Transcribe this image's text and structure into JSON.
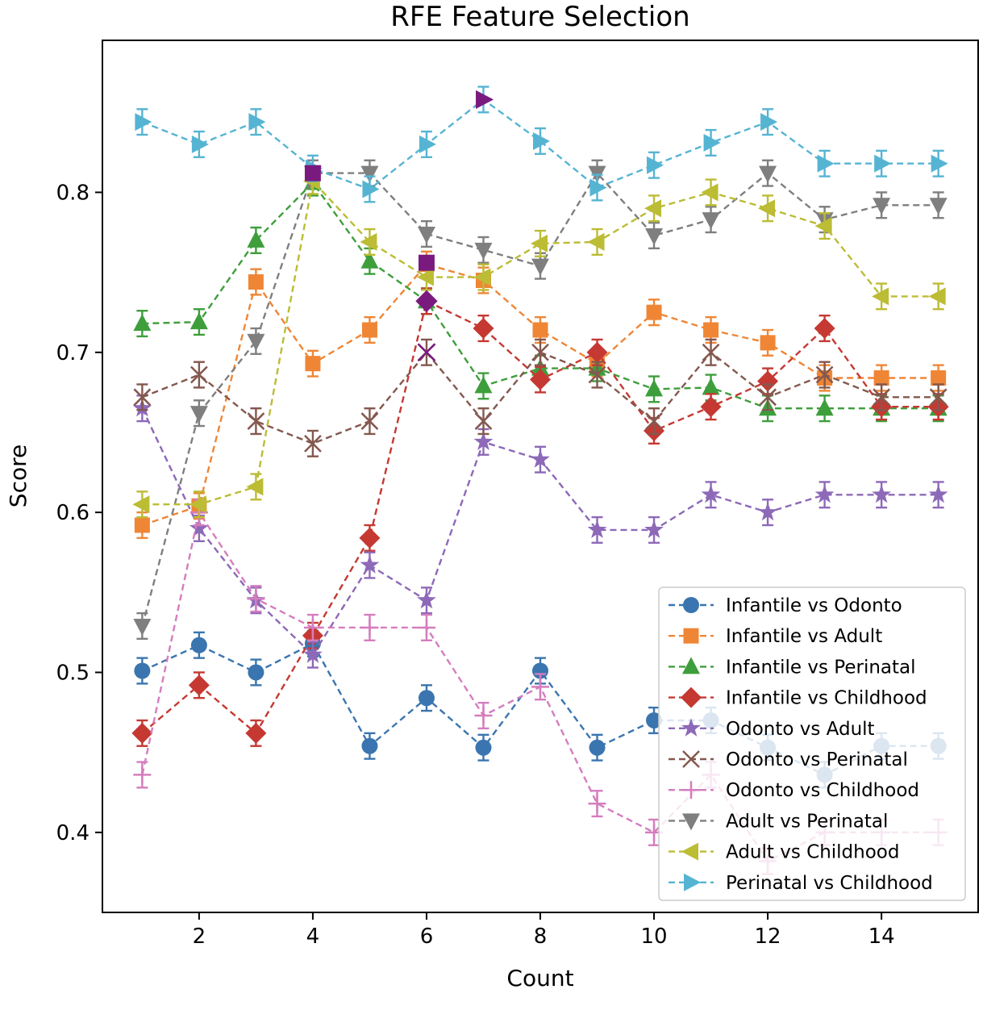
{
  "chart_data": {
    "type": "line",
    "title": "RFE Feature Selection",
    "xlabel": "Count",
    "ylabel": "Score",
    "xlim": [
      0.3,
      15.7
    ],
    "ylim": [
      0.35,
      0.895
    ],
    "xticks": [
      2,
      4,
      6,
      8,
      10,
      12,
      14
    ],
    "yticks": [
      0.4,
      0.5,
      0.6,
      0.7,
      0.8
    ],
    "grid": false,
    "legend_position": "lower-right",
    "x": [
      1,
      2,
      3,
      4,
      5,
      6,
      7,
      8,
      9,
      10,
      11,
      12,
      13,
      14,
      15
    ],
    "error_bar": 0.008,
    "series": [
      {
        "name": "Infantile vs Odonto",
        "color": "#3a75af",
        "marker": "circle",
        "values": [
          0.501,
          0.517,
          0.5,
          0.518,
          0.454,
          0.484,
          0.453,
          0.501,
          0.453,
          0.47,
          0.47,
          0.453,
          0.436,
          0.454,
          0.454
        ]
      },
      {
        "name": "Infantile vs Adult",
        "color": "#ef8636",
        "marker": "square",
        "values": [
          0.592,
          0.604,
          0.744,
          0.693,
          0.714,
          0.755,
          0.745,
          0.714,
          0.693,
          0.725,
          0.714,
          0.706,
          0.684,
          0.684,
          0.684
        ]
      },
      {
        "name": "Infantile vs Perinatal",
        "color": "#3e9e3c",
        "marker": "triangle-up",
        "values": [
          0.718,
          0.719,
          0.77,
          0.806,
          0.757,
          0.732,
          0.679,
          0.69,
          0.69,
          0.677,
          0.678,
          0.665,
          0.665,
          0.665,
          0.665
        ]
      },
      {
        "name": "Infantile vs Childhood",
        "color": "#c53932",
        "marker": "diamond",
        "values": [
          0.462,
          0.492,
          0.462,
          0.523,
          0.584,
          0.732,
          0.715,
          0.683,
          0.7,
          0.651,
          0.666,
          0.682,
          0.715,
          0.666,
          0.666
        ]
      },
      {
        "name": "Odonto vs Adult",
        "color": "#8d69b8",
        "marker": "star",
        "values": [
          0.665,
          0.59,
          0.545,
          0.511,
          0.567,
          0.545,
          0.644,
          0.633,
          0.589,
          0.589,
          0.611,
          0.6,
          0.611,
          0.611,
          0.611
        ]
      },
      {
        "name": "Odonto vs Perinatal",
        "color": "#84584e",
        "marker": "x",
        "values": [
          0.672,
          0.686,
          0.657,
          0.643,
          0.657,
          0.7,
          0.657,
          0.7,
          0.686,
          0.657,
          0.7,
          0.672,
          0.686,
          0.672,
          0.672
        ]
      },
      {
        "name": "Odonto vs Childhood",
        "color": "#d57dbe",
        "marker": "plus",
        "values": [
          0.436,
          0.6,
          0.546,
          0.528,
          0.528,
          0.528,
          0.473,
          0.491,
          0.418,
          0.4,
          0.436,
          0.382,
          0.4,
          0.4,
          0.4
        ]
      },
      {
        "name": "Adult vs Perinatal",
        "color": "#7f7f7f",
        "marker": "triangle-down",
        "values": [
          0.529,
          0.662,
          0.707,
          0.812,
          0.812,
          0.774,
          0.764,
          0.754,
          0.812,
          0.773,
          0.783,
          0.812,
          0.783,
          0.792,
          0.792
        ]
      },
      {
        "name": "Adult vs Childhood",
        "color": "#bcbc35",
        "marker": "triangle-left",
        "values": [
          0.605,
          0.605,
          0.616,
          0.807,
          0.769,
          0.747,
          0.747,
          0.768,
          0.769,
          0.79,
          0.8,
          0.79,
          0.779,
          0.735,
          0.735
        ]
      },
      {
        "name": "Perinatal vs Childhood",
        "color": "#56b4d3",
        "marker": "triangle-right",
        "values": [
          0.844,
          0.83,
          0.844,
          0.815,
          0.802,
          0.83,
          0.858,
          0.832,
          0.803,
          0.817,
          0.831,
          0.844,
          0.818,
          0.818,
          0.818
        ]
      }
    ],
    "best_points": [
      {
        "x": 4,
        "y": 0.812,
        "marker": "square",
        "color": "#7a1a7e"
      },
      {
        "x": 6,
        "y": 0.756,
        "marker": "square",
        "color": "#7a1a7e"
      },
      {
        "x": 6,
        "y": 0.732,
        "marker": "diamond",
        "color": "#7a1a7e"
      },
      {
        "x": 6,
        "y": 0.7,
        "marker": "x",
        "color": "#7a1a7e"
      },
      {
        "x": 7,
        "y": 0.858,
        "marker": "triangle-right",
        "color": "#7a1a7e"
      }
    ]
  }
}
